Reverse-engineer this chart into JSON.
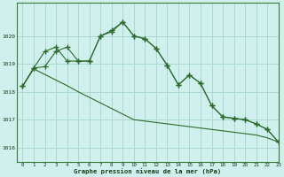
{
  "line1_x": [
    0,
    1,
    2,
    3,
    4,
    5,
    6,
    7,
    8,
    9,
    10,
    11,
    12,
    13,
    14,
    15,
    16,
    17,
    18,
    19,
    20,
    21,
    22,
    23
  ],
  "line1_y": [
    1018.2,
    1018.85,
    1018.9,
    1019.45,
    1019.6,
    1019.1,
    1019.1,
    1020.0,
    1020.15,
    1020.5,
    1020.0,
    1019.9,
    1019.55,
    1018.95,
    1018.25,
    1018.6,
    1018.3,
    1017.5,
    1017.1,
    1017.05,
    1017.0,
    1016.85,
    1016.65,
    1016.2
  ],
  "line2_x": [
    0,
    1,
    2,
    3,
    4,
    5,
    6,
    7,
    8,
    9,
    10,
    11,
    12,
    13,
    14,
    15,
    16,
    17,
    18,
    19,
    20,
    21,
    22,
    23
  ],
  "line2_y": [
    1018.2,
    1018.85,
    1019.45,
    1019.6,
    1019.1,
    1019.1,
    1019.1,
    1020.0,
    1020.2,
    1020.5,
    1020.0,
    1019.9,
    1019.55,
    1018.95,
    1018.25,
    1018.6,
    1018.3,
    1017.5,
    1017.1,
    1017.05,
    1017.0,
    1016.85,
    1016.65,
    1016.2
  ],
  "line3_x": [
    0,
    1,
    2,
    3,
    4,
    5,
    6,
    7,
    8,
    9,
    10,
    11,
    12,
    13,
    14,
    15,
    16,
    17,
    18,
    19,
    20,
    21,
    22,
    23
  ],
  "line3_y": [
    1018.2,
    1018.82,
    1018.62,
    1018.42,
    1018.22,
    1018.0,
    1017.8,
    1017.6,
    1017.4,
    1017.2,
    1017.0,
    1016.95,
    1016.9,
    1016.85,
    1016.8,
    1016.75,
    1016.7,
    1016.65,
    1016.6,
    1016.55,
    1016.5,
    1016.45,
    1016.35,
    1016.2
  ],
  "line_color": "#2d6a2d",
  "bg_color": "#cff0ec",
  "grid_color": "#aad8d0",
  "xlabel": "Graphe pression niveau de la mer (hPa)",
  "ylim": [
    1015.5,
    1021.2
  ],
  "xlim": [
    -0.5,
    23
  ],
  "yticks": [
    1016,
    1017,
    1018,
    1019,
    1020
  ],
  "xticks": [
    0,
    1,
    2,
    3,
    4,
    5,
    6,
    7,
    8,
    9,
    10,
    11,
    12,
    13,
    14,
    15,
    16,
    17,
    18,
    19,
    20,
    21,
    22,
    23
  ]
}
